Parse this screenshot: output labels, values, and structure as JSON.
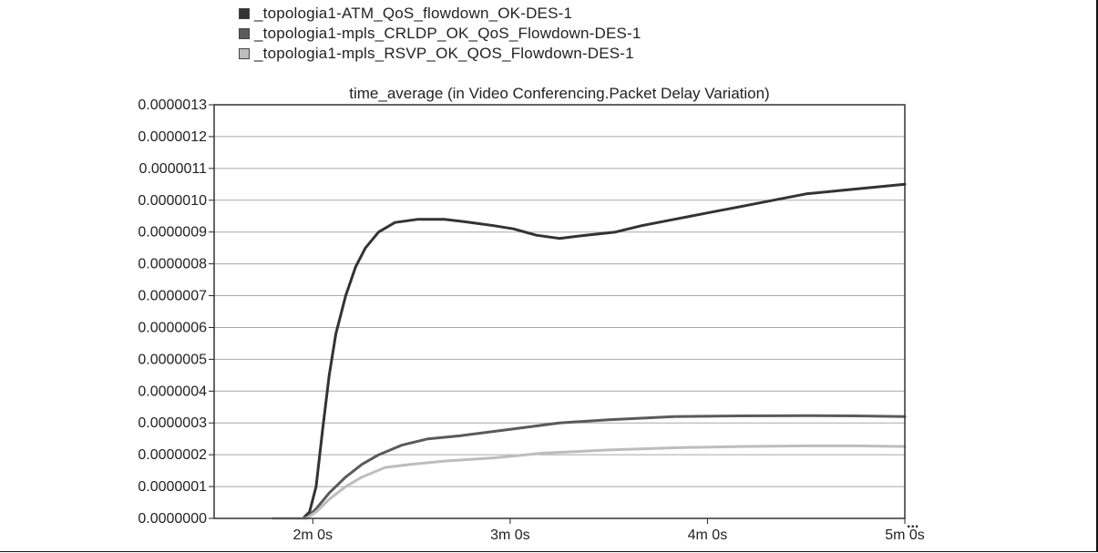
{
  "chart_data": {
    "type": "line",
    "title": "time_average (in Video Conferencing.Packet Delay Variation)",
    "xlabel": "",
    "ylabel": "",
    "x_ticks": [
      {
        "value": 120,
        "label": "2m 0s"
      },
      {
        "value": 180,
        "label": "3m 0s"
      },
      {
        "value": 240,
        "label": "4m 0s"
      },
      {
        "value": 300,
        "label": "5m 0s"
      }
    ],
    "y_ticks": [
      {
        "value": 0.0,
        "label": "0.0000000"
      },
      {
        "value": 1e-07,
        "label": "0.0000001"
      },
      {
        "value": 2e-07,
        "label": "0.0000002"
      },
      {
        "value": 3e-07,
        "label": "0.0000003"
      },
      {
        "value": 4e-07,
        "label": "0.0000004"
      },
      {
        "value": 5e-07,
        "label": "0.0000005"
      },
      {
        "value": 6e-07,
        "label": "0.0000006"
      },
      {
        "value": 7e-07,
        "label": "0.0000007"
      },
      {
        "value": 8e-07,
        "label": "0.0000008"
      },
      {
        "value": 9e-07,
        "label": "0.0000009"
      },
      {
        "value": 1e-06,
        "label": "0.0000010"
      },
      {
        "value": 1.1e-06,
        "label": "0.0000011"
      },
      {
        "value": 1.2e-06,
        "label": "0.0000012"
      },
      {
        "value": 1.3e-06,
        "label": "0.0000013"
      }
    ],
    "xlim": [
      90,
      300
    ],
    "ylim": [
      0,
      1.3e-06
    ],
    "grid": true,
    "legend_position": "top",
    "axis_ellipsis": "...",
    "series": [
      {
        "name": "_topologia1-ATM_QoS_flowdown_OK-DES-1",
        "color": "#333333",
        "points": [
          [
            108,
            0
          ],
          [
            117,
            0
          ],
          [
            119,
            2e-08
          ],
          [
            121,
            1e-07
          ],
          [
            123,
            2.8e-07
          ],
          [
            125,
            4.5e-07
          ],
          [
            127,
            5.8e-07
          ],
          [
            130,
            7e-07
          ],
          [
            133,
            7.9e-07
          ],
          [
            136,
            8.5e-07
          ],
          [
            140,
            9e-07
          ],
          [
            145,
            9.3e-07
          ],
          [
            152,
            9.4e-07
          ],
          [
            160,
            9.4e-07
          ],
          [
            168,
            9.3e-07
          ],
          [
            175,
            9.2e-07
          ],
          [
            181,
            9.1e-07
          ],
          [
            188,
            8.9e-07
          ],
          [
            195,
            8.8e-07
          ],
          [
            203,
            8.9e-07
          ],
          [
            212,
            9e-07
          ],
          [
            220,
            9.2e-07
          ],
          [
            230,
            9.4e-07
          ],
          [
            240,
            9.6e-07
          ],
          [
            250,
            9.8e-07
          ],
          [
            260,
            1e-06
          ],
          [
            270,
            1.02e-06
          ],
          [
            280,
            1.03e-06
          ],
          [
            290,
            1.04e-06
          ],
          [
            300,
            1.05e-06
          ]
        ]
      },
      {
        "name": "_topologia1-mpls_CRLDP_OK_QoS_Flowdown-DES-1",
        "color": "#5a5a5a",
        "points": [
          [
            108,
            0
          ],
          [
            118,
            0
          ],
          [
            121,
            3e-08
          ],
          [
            125,
            8e-08
          ],
          [
            130,
            1.3e-07
          ],
          [
            135,
            1.7e-07
          ],
          [
            140,
            2e-07
          ],
          [
            147,
            2.3e-07
          ],
          [
            155,
            2.5e-07
          ],
          [
            165,
            2.6e-07
          ],
          [
            180,
            2.8e-07
          ],
          [
            195,
            3e-07
          ],
          [
            210,
            3.1e-07
          ],
          [
            230,
            3.2e-07
          ],
          [
            250,
            3.22e-07
          ],
          [
            270,
            3.23e-07
          ],
          [
            285,
            3.22e-07
          ],
          [
            300,
            3.2e-07
          ]
        ]
      },
      {
        "name": "_topologia1-mpls_RSVP_OK_QOS_Flowdown-DES-1",
        "color": "#bdbdbd",
        "points": [
          [
            108,
            0
          ],
          [
            118,
            0
          ],
          [
            121,
            2e-08
          ],
          [
            125,
            6e-08
          ],
          [
            130,
            1e-07
          ],
          [
            135,
            1.3e-07
          ],
          [
            142,
            1.6e-07
          ],
          [
            150,
            1.7e-07
          ],
          [
            160,
            1.8e-07
          ],
          [
            175,
            1.9e-07
          ],
          [
            190,
            2.05e-07
          ],
          [
            210,
            2.15e-07
          ],
          [
            230,
            2.22e-07
          ],
          [
            250,
            2.26e-07
          ],
          [
            270,
            2.28e-07
          ],
          [
            285,
            2.28e-07
          ],
          [
            300,
            2.26e-07
          ]
        ]
      }
    ]
  }
}
